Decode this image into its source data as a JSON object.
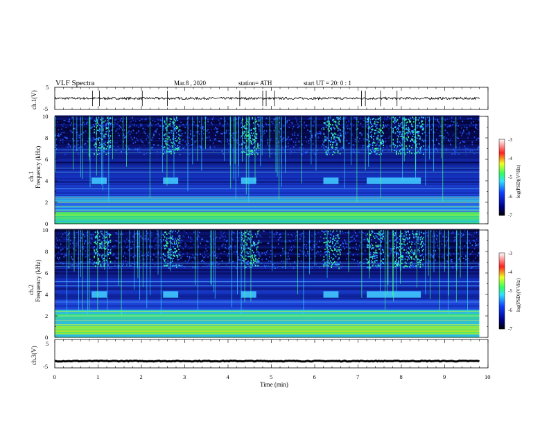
{
  "header": {
    "title": "VLF  Spectra",
    "date": "Mar.8  , 2020",
    "station": "station= ATH",
    "start": "start  UT  =    20: 0   : 1"
  },
  "colors": {
    "background": "#000022",
    "dark_blue": "#0a1a8c",
    "blue": "#1c4cff",
    "cyan": "#33e0ff",
    "green": "#40ff60",
    "yellow": "#e8ff30",
    "red": "#ff2020",
    "white": "#ffffff"
  },
  "chart_data": [
    {
      "type": "line",
      "panel": "ch1-waveform",
      "ylabel": "ch.1(V)",
      "ylim": [
        -5,
        5
      ],
      "yticks": [
        "5",
        "-5"
      ],
      "xlim": [
        0,
        10
      ],
      "baseline": 0,
      "noise_amplitude": 0.5,
      "spikes_x": [
        0.87,
        1.03,
        2.02,
        2.6,
        4.27,
        4.8,
        4.88,
        5.07,
        7.08,
        7.17,
        7.52,
        7.9
      ]
    },
    {
      "type": "heatmap",
      "panel": "ch1-spectrogram",
      "ylabel": "ch.1\nFrequency  (kHz)",
      "ylim": [
        0,
        10
      ],
      "yticks": [
        "0",
        "2",
        "4",
        "6",
        "8",
        "10"
      ],
      "xlim": [
        0,
        9.8
      ],
      "colorbar": {
        "label": "log(PSD)(V²/Hz)",
        "range": [
          -7,
          -3
        ],
        "ticks": [
          "-3",
          "-4",
          "-5",
          "-6",
          "-7"
        ]
      },
      "bursts_4khz_min": [
        [
          0.85,
          1.2
        ],
        [
          2.5,
          2.85
        ],
        [
          4.3,
          4.65
        ],
        [
          6.2,
          6.55
        ],
        [
          7.2,
          8.45
        ]
      ],
      "whistler_bursts_min": [
        [
          0.9,
          1.3
        ],
        [
          2.5,
          2.9
        ],
        [
          4.3,
          4.7
        ],
        [
          6.2,
          6.6
        ],
        [
          7.2,
          7.6
        ],
        [
          7.8,
          8.5
        ]
      ]
    },
    {
      "type": "heatmap",
      "panel": "ch2-spectrogram",
      "ylabel": "ch.2\nFrequency  (kHz)",
      "ylim": [
        0,
        10
      ],
      "yticks": [
        "0",
        "2",
        "4",
        "6",
        "8",
        "10"
      ],
      "xlim": [
        0,
        9.8
      ],
      "colorbar": {
        "label": "log(PSD)(V²/Hz)",
        "range": [
          -7,
          -3
        ],
        "ticks": [
          "-3",
          "-4",
          "-5",
          "-6",
          "-7"
        ]
      },
      "bursts_4khz_min": [
        [
          0.85,
          1.2
        ],
        [
          2.5,
          2.85
        ],
        [
          4.3,
          4.65
        ],
        [
          6.2,
          6.55
        ],
        [
          7.2,
          8.45
        ]
      ],
      "whistler_bursts_min": [
        [
          0.9,
          1.3
        ],
        [
          2.5,
          2.9
        ],
        [
          4.3,
          4.7
        ],
        [
          6.2,
          6.6
        ],
        [
          7.2,
          7.6
        ],
        [
          7.8,
          8.5
        ]
      ]
    },
    {
      "type": "line",
      "panel": "ch3-waveform",
      "ylabel": "ch.3(V)",
      "ylim": [
        -5,
        5
      ],
      "yticks": [
        "5",
        "-5"
      ],
      "xlim": [
        0,
        10
      ],
      "baseline": -2.6,
      "noise_amplitude": 0.15,
      "xlabel": "Time  (min)",
      "xticks": [
        "0",
        "1",
        "2",
        "3",
        "4",
        "5",
        "6",
        "7",
        "8",
        "9",
        "10"
      ]
    }
  ]
}
